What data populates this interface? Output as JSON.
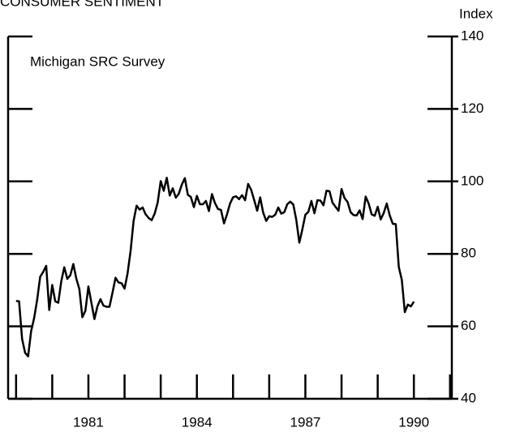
{
  "chart_data": {
    "type": "line",
    "title": "CONSUMER SENTIMENT",
    "y_axis_label": "Index",
    "annotation": "Michigan SRC Survey",
    "color": "#000000",
    "x": [
      1980,
      1980.083,
      1980.167,
      1980.25,
      1980.333,
      1980.417,
      1980.5,
      1980.583,
      1980.667,
      1980.75,
      1980.833,
      1980.917,
      1981,
      1981.083,
      1981.167,
      1981.25,
      1981.333,
      1981.417,
      1981.5,
      1981.583,
      1981.667,
      1981.75,
      1981.833,
      1981.917,
      1982,
      1982.083,
      1982.167,
      1982.25,
      1982.333,
      1982.417,
      1982.5,
      1982.583,
      1982.667,
      1982.75,
      1982.833,
      1982.917,
      1983,
      1983.083,
      1983.167,
      1983.25,
      1983.333,
      1983.417,
      1983.5,
      1983.583,
      1983.667,
      1983.75,
      1983.833,
      1983.917,
      1984,
      1984.083,
      1984.167,
      1984.25,
      1984.333,
      1984.417,
      1984.5,
      1984.583,
      1984.667,
      1984.75,
      1984.833,
      1984.917,
      1985,
      1985.083,
      1985.167,
      1985.25,
      1985.333,
      1985.417,
      1985.5,
      1985.583,
      1985.667,
      1985.75,
      1985.833,
      1985.917,
      1986,
      1986.083,
      1986.167,
      1986.25,
      1986.333,
      1986.417,
      1986.5,
      1986.583,
      1986.667,
      1986.75,
      1986.833,
      1986.917,
      1987,
      1987.083,
      1987.167,
      1987.25,
      1987.333,
      1987.417,
      1987.5,
      1987.583,
      1987.667,
      1987.75,
      1987.833,
      1987.917,
      1988,
      1988.083,
      1988.167,
      1988.25,
      1988.333,
      1988.417,
      1988.5,
      1988.583,
      1988.667,
      1988.75,
      1988.833,
      1988.917,
      1989,
      1989.083,
      1989.167,
      1989.25,
      1989.333,
      1989.417,
      1989.5,
      1989.583,
      1989.667,
      1989.75,
      1989.833,
      1989.917,
      1990,
      1990.083,
      1990.167,
      1990.25,
      1990.333,
      1990.417,
      1990.5,
      1990.583,
      1990.667,
      1990.75,
      1990.833,
      1990.917,
      1991
    ],
    "values": [
      67.0,
      66.9,
      56.5,
      52.7,
      51.7,
      58.7,
      62.3,
      67.3,
      73.7,
      75.0,
      76.7,
      64.5,
      71.4,
      66.9,
      66.5,
      72.4,
      76.3,
      73.1,
      74.1,
      77.2,
      73.1,
      70.3,
      62.5,
      64.3,
      71.0,
      66.5,
      62.0,
      65.5,
      67.5,
      65.7,
      65.4,
      65.4,
      69.3,
      73.4,
      72.1,
      71.9,
      70.4,
      74.6,
      80.8,
      89.1,
      93.3,
      92.2,
      92.8,
      90.9,
      89.9,
      89.3,
      91.1,
      94.2,
      100.1,
      97.4,
      101.0,
      96.1,
      98.1,
      95.5,
      96.6,
      99.1,
      100.9,
      96.3,
      95.7,
      92.9,
      96.0,
      93.7,
      93.7,
      94.6,
      91.8,
      96.5,
      94.0,
      92.4,
      92.1,
      88.4,
      90.9,
      93.9,
      95.6,
      95.9,
      95.1,
      96.2,
      94.8,
      99.3,
      97.7,
      94.9,
      91.9,
      95.6,
      91.4,
      89.1,
      90.4,
      90.2,
      90.8,
      92.8,
      91.1,
      91.5,
      93.7,
      94.4,
      93.6,
      89.3,
      83.1,
      86.8,
      90.8,
      91.6,
      94.6,
      91.2,
      94.8,
      94.7,
      93.4,
      97.4,
      97.3,
      94.1,
      93.0,
      91.9,
      97.9,
      95.4,
      94.3,
      91.5,
      90.7,
      90.6,
      92.0,
      89.6,
      95.8,
      93.9,
      90.9,
      90.5,
      93.0,
      89.5,
      91.3,
      93.9,
      90.6,
      88.3,
      88.2,
      76.4,
      72.8,
      63.9,
      66.0,
      65.5,
      66.8
    ],
    "xlim": [
      1979.78,
      1992.05
    ],
    "xticks": [
      1980,
      1981,
      1982,
      1983,
      1984,
      1985,
      1986,
      1987,
      1988,
      1989,
      1990,
      1991,
      1992
    ],
    "xlabels": [
      1981,
      1984,
      1987,
      1990
    ],
    "ylim": [
      40,
      140
    ],
    "yticks": [
      40,
      60,
      80,
      100,
      120,
      140
    ]
  }
}
